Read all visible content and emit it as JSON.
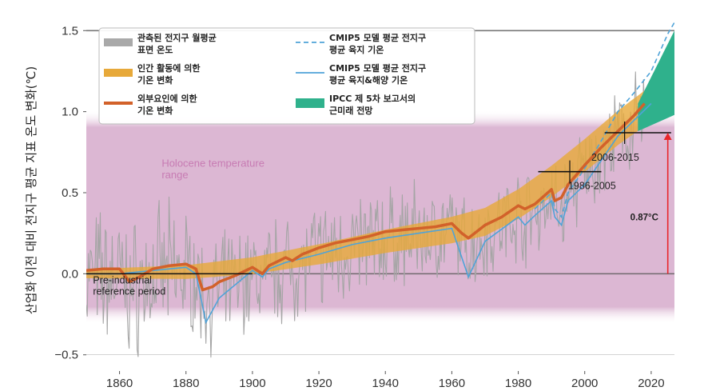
{
  "chart_data": {
    "type": "line",
    "ylabel": "산업화 이전 대비 전지구 평균 지표 온도 변화(℃)",
    "xlim": [
      1850,
      2027
    ],
    "ylim": [
      -0.6,
      1.6
    ],
    "xticks": [
      1860,
      1880,
      1900,
      1920,
      1940,
      1960,
      1980,
      2000,
      2020
    ],
    "yticks": [
      -0.5,
      0.0,
      0.5,
      1.0,
      1.5
    ],
    "ytick_labels": [
      "−0.5",
      "0.0",
      "0.5",
      "1.0",
      "1.5"
    ],
    "holocene_range": {
      "label_line1": "Holocene temperature",
      "label_line2": "range",
      "ymin": -0.25,
      "ymax": 0.95,
      "color": "#ddb9d5"
    },
    "preindustrial_reference": {
      "label_line1": "Pre-industrial",
      "label_line2": "reference period",
      "x": [
        1850,
        1900
      ],
      "y": 0.0
    },
    "legend": [
      {
        "key": "observed",
        "line1": "관측된 전지구 월평균",
        "line2": "표면 온도",
        "color": "#a9a9a9",
        "style": "band"
      },
      {
        "key": "anthropogenic",
        "line1": "인간 활동에 의한",
        "line2": "기온 변화",
        "color": "#e7a93a",
        "style": "band"
      },
      {
        "key": "external",
        "line1": "외부요인에 의한",
        "line2": "기온 변화",
        "color": "#d2612a",
        "style": "thick"
      },
      {
        "key": "cmip5_land",
        "line1": "CMIP5 모델 평균 전지구",
        "line2": "평균 육지 기온",
        "color": "#4fa3d8",
        "style": "dashed"
      },
      {
        "key": "cmip5_landocean",
        "line1": "CMIP5 모델 평균 전지구",
        "line2": "평균 육지&해양 기온",
        "color": "#4fa3d8",
        "style": "solid"
      },
      {
        "key": "ipcc",
        "line1": "IPCC 제 5차 보고서의",
        "line2": "근미래 전망",
        "color": "#2fb18c",
        "style": "patch"
      }
    ],
    "series": [
      {
        "name": "외부요인에 의한 기온 변화",
        "key": "external",
        "x": [
          1850,
          1855,
          1860,
          1863,
          1866,
          1870,
          1875,
          1880,
          1883,
          1885,
          1888,
          1890,
          1895,
          1900,
          1903,
          1905,
          1910,
          1912,
          1915,
          1920,
          1925,
          1930,
          1935,
          1940,
          1945,
          1950,
          1955,
          1960,
          1963,
          1965,
          1970,
          1975,
          1980,
          1982,
          1985,
          1990,
          1991,
          1993,
          1995,
          2000,
          2005,
          2010,
          2015,
          2018
        ],
        "y": [
          0.02,
          0.03,
          0.03,
          -0.05,
          -0.02,
          0.03,
          0.05,
          0.06,
          0.03,
          -0.1,
          -0.08,
          -0.05,
          -0.01,
          0.04,
          0.0,
          0.05,
          0.1,
          0.08,
          0.12,
          0.16,
          0.19,
          0.21,
          0.23,
          0.26,
          0.27,
          0.28,
          0.29,
          0.31,
          0.25,
          0.22,
          0.3,
          0.35,
          0.42,
          0.4,
          0.43,
          0.52,
          0.45,
          0.47,
          0.55,
          0.67,
          0.78,
          0.88,
          0.98,
          1.05
        ]
      },
      {
        "name": "인간 활동에 의한 기온 변화",
        "key": "anthropogenic",
        "x": [
          1850,
          1880,
          1900,
          1920,
          1940,
          1960,
          1970,
          1980,
          1990,
          2000,
          2010,
          2018
        ],
        "y": [
          0.0,
          0.01,
          0.05,
          0.12,
          0.2,
          0.27,
          0.32,
          0.43,
          0.57,
          0.73,
          0.9,
          1.02
        ],
        "band": 0.11
      },
      {
        "name": "CMIP5 모델 평균 전지구 평균 육지&해양 기온",
        "key": "cmip5_landocean",
        "x": [
          1850,
          1860,
          1870,
          1880,
          1883,
          1886,
          1890,
          1900,
          1903,
          1905,
          1910,
          1920,
          1930,
          1940,
          1950,
          1960,
          1963,
          1965,
          1970,
          1980,
          1982,
          1985,
          1990,
          1991,
          1993,
          1995,
          2000,
          2005,
          2010,
          2015,
          2020
        ],
        "y": [
          0.0,
          0.0,
          0.02,
          0.04,
          0.0,
          -0.3,
          -0.15,
          0.02,
          -0.02,
          0.03,
          0.07,
          0.12,
          0.18,
          0.22,
          0.25,
          0.28,
          0.1,
          -0.02,
          0.2,
          0.35,
          0.3,
          0.36,
          0.45,
          0.35,
          0.3,
          0.45,
          0.55,
          0.7,
          0.85,
          0.95,
          1.05
        ]
      },
      {
        "name": "CMIP5 모델 평균 전지구 평균 육지 기온",
        "key": "cmip5_land",
        "x": [
          1985,
          1990,
          1991,
          1993,
          1995,
          2000,
          2005,
          2010,
          2015,
          2020,
          2025,
          2027
        ],
        "y": [
          0.4,
          0.5,
          0.4,
          0.35,
          0.5,
          0.65,
          0.82,
          1.0,
          1.12,
          1.25,
          1.48,
          1.55
        ]
      }
    ],
    "ipcc_projection": {
      "x": [
        2016,
        2027
      ],
      "lower": [
        0.88,
        0.98
      ],
      "upper": [
        1.05,
        1.5
      ]
    },
    "period_markers": [
      {
        "label": "1986-2005",
        "x": [
          1986,
          2005
        ],
        "y": 0.63
      },
      {
        "label": "2006-2015",
        "x": [
          2006,
          2026
        ],
        "y": 0.87
      }
    ],
    "warming_annotation": {
      "label": "0.87°C",
      "x": 2025,
      "from": 0.0,
      "to": 0.87,
      "color": "#e8262a"
    }
  }
}
